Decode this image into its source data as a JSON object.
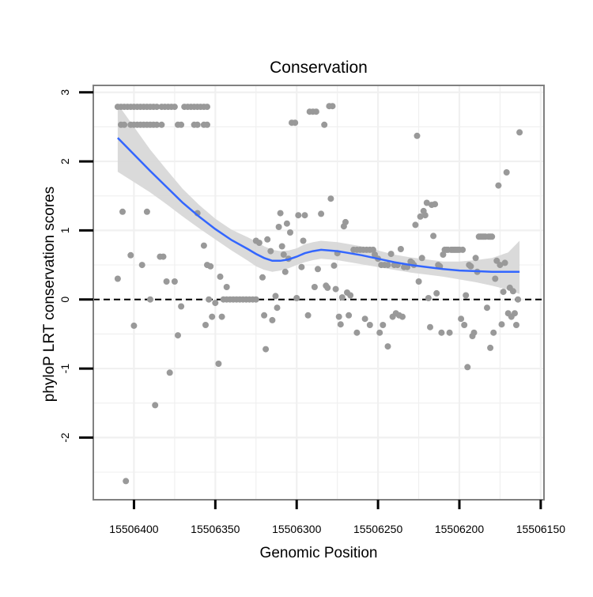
{
  "chart_data": {
    "type": "scatter",
    "title": "Conservation",
    "xlabel": "Genomic Position",
    "ylabel": "phyloP LRT conservation scores",
    "x_reversed": true,
    "xlim": [
      15506425,
      15506148
    ],
    "ylim": [
      -2.9,
      3.1
    ],
    "x_ticks": [
      15506400,
      15506350,
      15506300,
      15506250,
      15506200,
      15506150
    ],
    "x_tick_labels": [
      "15506400",
      "15506350",
      "15506300",
      "15506250",
      "15506200",
      "15506150"
    ],
    "y_ticks": [
      -2,
      -1,
      0,
      1,
      2,
      3
    ],
    "y_tick_labels": [
      "-2",
      "-1",
      "0",
      "1",
      "2",
      "3"
    ],
    "grid": true,
    "reference_line": {
      "y": 0,
      "style": "dashed",
      "color": "#000000"
    },
    "colors": {
      "points": "#999999",
      "smooth_line": "#3366ff",
      "confidence_band": "#d6d6d6",
      "panel_border": "#808080",
      "grid": "#f0f0f0"
    },
    "points": [
      {
        "x": 15506410,
        "y": 2.79
      },
      {
        "x": 15506408,
        "y": 2.79
      },
      {
        "x": 15506406,
        "y": 2.79
      },
      {
        "x": 15506404,
        "y": 2.79
      },
      {
        "x": 15506402,
        "y": 2.79
      },
      {
        "x": 15506400,
        "y": 2.79
      },
      {
        "x": 15506398,
        "y": 2.79
      },
      {
        "x": 15506396,
        "y": 2.79
      },
      {
        "x": 15506394,
        "y": 2.79
      },
      {
        "x": 15506392,
        "y": 2.79
      },
      {
        "x": 15506390,
        "y": 2.79
      },
      {
        "x": 15506388,
        "y": 2.79
      },
      {
        "x": 15506386,
        "y": 2.79
      },
      {
        "x": 15506383,
        "y": 2.79
      },
      {
        "x": 15506381,
        "y": 2.79
      },
      {
        "x": 15506379,
        "y": 2.79
      },
      {
        "x": 15506377,
        "y": 2.79
      },
      {
        "x": 15506375,
        "y": 2.79
      },
      {
        "x": 15506369,
        "y": 2.79
      },
      {
        "x": 15506367,
        "y": 2.79
      },
      {
        "x": 15506365,
        "y": 2.79
      },
      {
        "x": 15506363,
        "y": 2.79
      },
      {
        "x": 15506361,
        "y": 2.79
      },
      {
        "x": 15506359,
        "y": 2.79
      },
      {
        "x": 15506357,
        "y": 2.79
      },
      {
        "x": 15506355,
        "y": 2.79
      },
      {
        "x": 15506408,
        "y": 2.53
      },
      {
        "x": 15506406,
        "y": 2.53
      },
      {
        "x": 15506402,
        "y": 2.53
      },
      {
        "x": 15506400,
        "y": 2.53
      },
      {
        "x": 15506398,
        "y": 2.53
      },
      {
        "x": 15506396,
        "y": 2.53
      },
      {
        "x": 15506394,
        "y": 2.53
      },
      {
        "x": 15506392,
        "y": 2.53
      },
      {
        "x": 15506390,
        "y": 2.53
      },
      {
        "x": 15506388,
        "y": 2.53
      },
      {
        "x": 15506386,
        "y": 2.53
      },
      {
        "x": 15506383,
        "y": 2.53
      },
      {
        "x": 15506373,
        "y": 2.53
      },
      {
        "x": 15506371,
        "y": 2.53
      },
      {
        "x": 15506363,
        "y": 2.53
      },
      {
        "x": 15506361,
        "y": 2.53
      },
      {
        "x": 15506357,
        "y": 2.53
      },
      {
        "x": 15506355,
        "y": 2.53
      },
      {
        "x": 15506410,
        "y": 0.3
      },
      {
        "x": 15506407,
        "y": 1.27
      },
      {
        "x": 15506405,
        "y": -2.63
      },
      {
        "x": 15506402,
        "y": 0.64
      },
      {
        "x": 15506400,
        "y": -0.38
      },
      {
        "x": 15506395,
        "y": 0.5
      },
      {
        "x": 15506392,
        "y": 1.27
      },
      {
        "x": 15506390,
        "y": 0.0
      },
      {
        "x": 15506387,
        "y": -1.53
      },
      {
        "x": 15506384,
        "y": 0.62
      },
      {
        "x": 15506382,
        "y": 0.62
      },
      {
        "x": 15506380,
        "y": 0.26
      },
      {
        "x": 15506378,
        "y": -1.06
      },
      {
        "x": 15506375,
        "y": 0.26
      },
      {
        "x": 15506373,
        "y": -0.52
      },
      {
        "x": 15506371,
        "y": -0.1
      },
      {
        "x": 15506361,
        "y": 1.25
      },
      {
        "x": 15506357,
        "y": 0.78
      },
      {
        "x": 15506355,
        "y": 0.5
      },
      {
        "x": 15506353,
        "y": 0.48
      },
      {
        "x": 15506356,
        "y": -0.37
      },
      {
        "x": 15506354,
        "y": 0.0
      },
      {
        "x": 15506352,
        "y": -0.25
      },
      {
        "x": 15506350,
        "y": -0.05
      },
      {
        "x": 15506348,
        "y": -0.93
      },
      {
        "x": 15506347,
        "y": 0.33
      },
      {
        "x": 15506346,
        "y": -0.25
      },
      {
        "x": 15506345,
        "y": 0.0
      },
      {
        "x": 15506343,
        "y": 0.18
      },
      {
        "x": 15506343,
        "y": 0.0
      },
      {
        "x": 15506341,
        "y": 0.0
      },
      {
        "x": 15506339,
        "y": 0.0
      },
      {
        "x": 15506337,
        "y": 0.0
      },
      {
        "x": 15506335,
        "y": 0.0
      },
      {
        "x": 15506333,
        "y": 0.0
      },
      {
        "x": 15506331,
        "y": 0.0
      },
      {
        "x": 15506329,
        "y": 0.0
      },
      {
        "x": 15506327,
        "y": 0.0
      },
      {
        "x": 15506325,
        "y": 0.0
      },
      {
        "x": 15506325,
        "y": 0.85
      },
      {
        "x": 15506323,
        "y": 0.82
      },
      {
        "x": 15506321,
        "y": 0.32
      },
      {
        "x": 15506319,
        "y": -0.72
      },
      {
        "x": 15506320,
        "y": -0.23
      },
      {
        "x": 15506318,
        "y": 0.87
      },
      {
        "x": 15506316,
        "y": 0.7
      },
      {
        "x": 15506315,
        "y": -0.3
      },
      {
        "x": 15506313,
        "y": 0.05
      },
      {
        "x": 15506312,
        "y": -0.12
      },
      {
        "x": 15506311,
        "y": 1.05
      },
      {
        "x": 15506310,
        "y": 1.25
      },
      {
        "x": 15506308,
        "y": 0.65
      },
      {
        "x": 15506306,
        "y": 1.1
      },
      {
        "x": 15506304,
        "y": 0.97
      },
      {
        "x": 15506303,
        "y": 2.56
      },
      {
        "x": 15506301,
        "y": 2.56
      },
      {
        "x": 15506300,
        "y": 0.02
      },
      {
        "x": 15506299,
        "y": 1.22
      },
      {
        "x": 15506297,
        "y": 0.47
      },
      {
        "x": 15506295,
        "y": 1.22
      },
      {
        "x": 15506293,
        "y": -0.23
      },
      {
        "x": 15506292,
        "y": 2.72
      },
      {
        "x": 15506290,
        "y": 2.72
      },
      {
        "x": 15506288,
        "y": 2.72
      },
      {
        "x": 15506287,
        "y": 0.44
      },
      {
        "x": 15506285,
        "y": 1.24
      },
      {
        "x": 15506283,
        "y": 2.53
      },
      {
        "x": 15506282,
        "y": 0.2
      },
      {
        "x": 15506280,
        "y": 2.8
      },
      {
        "x": 15506278,
        "y": 2.8
      },
      {
        "x": 15506279,
        "y": 1.46
      },
      {
        "x": 15506276,
        "y": 0.15
      },
      {
        "x": 15506275,
        "y": 0.67
      },
      {
        "x": 15506309,
        "y": 0.77
      },
      {
        "x": 15506307,
        "y": 0.4
      },
      {
        "x": 15506305,
        "y": 0.59
      },
      {
        "x": 15506296,
        "y": 0.85
      },
      {
        "x": 15506289,
        "y": 0.18
      },
      {
        "x": 15506281,
        "y": 0.17
      },
      {
        "x": 15506277,
        "y": 0.49
      },
      {
        "x": 15506274,
        "y": -0.25
      },
      {
        "x": 15506273,
        "y": -0.36
      },
      {
        "x": 15506272,
        "y": 0.03
      },
      {
        "x": 15506271,
        "y": 1.06
      },
      {
        "x": 15506270,
        "y": 1.12
      },
      {
        "x": 15506269,
        "y": 0.1
      },
      {
        "x": 15506268,
        "y": -0.23
      },
      {
        "x": 15506267,
        "y": 0.06
      },
      {
        "x": 15506265,
        "y": 0.72
      },
      {
        "x": 15506263,
        "y": 0.72
      },
      {
        "x": 15506261,
        "y": 0.72
      },
      {
        "x": 15506263,
        "y": -0.48
      },
      {
        "x": 15506259,
        "y": 0.72
      },
      {
        "x": 15506258,
        "y": -0.28
      },
      {
        "x": 15506257,
        "y": 0.72
      },
      {
        "x": 15506255,
        "y": 0.72
      },
      {
        "x": 15506253,
        "y": 0.72
      },
      {
        "x": 15506255,
        "y": -0.37
      },
      {
        "x": 15506252,
        "y": 0.65
      },
      {
        "x": 15506250,
        "y": 0.59
      },
      {
        "x": 15506249,
        "y": -0.48
      },
      {
        "x": 15506248,
        "y": 0.5
      },
      {
        "x": 15506247,
        "y": -0.37
      },
      {
        "x": 15506246,
        "y": 0.5
      },
      {
        "x": 15506244,
        "y": 0.5
      },
      {
        "x": 15506244,
        "y": -0.68
      },
      {
        "x": 15506242,
        "y": 0.66
      },
      {
        "x": 15506241,
        "y": -0.25
      },
      {
        "x": 15506240,
        "y": 0.5
      },
      {
        "x": 15506239,
        "y": -0.2
      },
      {
        "x": 15506238,
        "y": 0.5
      },
      {
        "x": 15506237,
        "y": -0.23
      },
      {
        "x": 15506236,
        "y": 0.73
      },
      {
        "x": 15506235,
        "y": -0.25
      },
      {
        "x": 15506234,
        "y": 0.47
      },
      {
        "x": 15506232,
        "y": 0.47
      },
      {
        "x": 15506230,
        "y": 0.55
      },
      {
        "x": 15506229,
        "y": 0.53
      },
      {
        "x": 15506228,
        "y": 0.5
      },
      {
        "x": 15506227,
        "y": 1.08
      },
      {
        "x": 15506226,
        "y": 2.37
      },
      {
        "x": 15506225,
        "y": 0.26
      },
      {
        "x": 15506224,
        "y": 1.2
      },
      {
        "x": 15506223,
        "y": 0.6
      },
      {
        "x": 15506222,
        "y": 1.28
      },
      {
        "x": 15506221,
        "y": 1.22
      },
      {
        "x": 15506220,
        "y": 1.4
      },
      {
        "x": 15506219,
        "y": 0.02
      },
      {
        "x": 15506218,
        "y": -0.4
      },
      {
        "x": 15506217,
        "y": 1.37
      },
      {
        "x": 15506216,
        "y": 0.92
      },
      {
        "x": 15506215,
        "y": 1.38
      },
      {
        "x": 15506214,
        "y": 0.09
      },
      {
        "x": 15506213,
        "y": 0.5
      },
      {
        "x": 15506212,
        "y": 0.48
      },
      {
        "x": 15506211,
        "y": -0.48
      },
      {
        "x": 15506210,
        "y": 0.65
      },
      {
        "x": 15506209,
        "y": 0.72
      },
      {
        "x": 15506208,
        "y": 0.72
      },
      {
        "x": 15506207,
        "y": 0.72
      },
      {
        "x": 15506206,
        "y": -0.48
      },
      {
        "x": 15506205,
        "y": 0.72
      },
      {
        "x": 15506204,
        "y": 0.72
      },
      {
        "x": 15506203,
        "y": 0.72
      },
      {
        "x": 15506202,
        "y": 0.72
      },
      {
        "x": 15506201,
        "y": 0.72
      },
      {
        "x": 15506200,
        "y": 0.72
      },
      {
        "x": 15506199,
        "y": -0.28
      },
      {
        "x": 15506198,
        "y": 0.72
      },
      {
        "x": 15506197,
        "y": -0.37
      },
      {
        "x": 15506196,
        "y": 0.06
      },
      {
        "x": 15506195,
        "y": -0.98
      },
      {
        "x": 15506194,
        "y": 0.5
      },
      {
        "x": 15506193,
        "y": 0.48
      },
      {
        "x": 15506192,
        "y": -0.53
      },
      {
        "x": 15506191,
        "y": -0.48
      },
      {
        "x": 15506190,
        "y": 0.6
      },
      {
        "x": 15506189,
        "y": 0.4
      },
      {
        "x": 15506188,
        "y": 0.91
      },
      {
        "x": 15506187,
        "y": 0.91
      },
      {
        "x": 15506186,
        "y": 0.91
      },
      {
        "x": 15506185,
        "y": 0.91
      },
      {
        "x": 15506184,
        "y": 0.91
      },
      {
        "x": 15506183,
        "y": -0.12
      },
      {
        "x": 15506182,
        "y": 0.91
      },
      {
        "x": 15506181,
        "y": 0.91
      },
      {
        "x": 15506181,
        "y": -0.7
      },
      {
        "x": 15506180,
        "y": 0.91
      },
      {
        "x": 15506179,
        "y": -0.48
      },
      {
        "x": 15506178,
        "y": 0.3
      },
      {
        "x": 15506177,
        "y": 0.56
      },
      {
        "x": 15506176,
        "y": 1.65
      },
      {
        "x": 15506175,
        "y": 0.5
      },
      {
        "x": 15506174,
        "y": -0.36
      },
      {
        "x": 15506173,
        "y": 0.11
      },
      {
        "x": 15506172,
        "y": 0.53
      },
      {
        "x": 15506171,
        "y": 1.84
      },
      {
        "x": 15506170,
        "y": -0.2
      },
      {
        "x": 15506169,
        "y": 0.17
      },
      {
        "x": 15506168,
        "y": -0.25
      },
      {
        "x": 15506167,
        "y": 0.12
      },
      {
        "x": 15506166,
        "y": -0.2
      },
      {
        "x": 15506165,
        "y": -0.37
      },
      {
        "x": 15506164,
        "y": 0.0
      },
      {
        "x": 15506163,
        "y": 2.42
      }
    ],
    "smooth": {
      "x": [
        15506410,
        15506400,
        15506390,
        15506380,
        15506370,
        15506360,
        15506350,
        15506340,
        15506330,
        15506325,
        15506320,
        15506315,
        15506310,
        15506305,
        15506300,
        15506295,
        15506290,
        15506285,
        15506280,
        15506275,
        15506270,
        15506260,
        15506250,
        15506240,
        15506230,
        15506220,
        15506210,
        15506200,
        15506190,
        15506180,
        15506170,
        15506163
      ],
      "y": [
        2.34,
        2.1,
        1.86,
        1.63,
        1.4,
        1.2,
        1.02,
        0.86,
        0.73,
        0.66,
        0.6,
        0.56,
        0.56,
        0.58,
        0.62,
        0.67,
        0.7,
        0.72,
        0.71,
        0.7,
        0.68,
        0.64,
        0.59,
        0.54,
        0.5,
        0.47,
        0.44,
        0.42,
        0.41,
        0.4,
        0.4,
        0.4
      ],
      "lower": [
        1.85,
        1.7,
        1.55,
        1.38,
        1.2,
        1.03,
        0.87,
        0.71,
        0.56,
        0.48,
        0.43,
        0.4,
        0.42,
        0.45,
        0.5,
        0.54,
        0.57,
        0.59,
        0.58,
        0.57,
        0.55,
        0.51,
        0.47,
        0.43,
        0.39,
        0.36,
        0.33,
        0.29,
        0.25,
        0.2,
        0.14,
        0.08
      ],
      "upper": [
        2.83,
        2.5,
        2.17,
        1.88,
        1.6,
        1.37,
        1.17,
        1.01,
        0.9,
        0.84,
        0.77,
        0.72,
        0.7,
        0.71,
        0.74,
        0.8,
        0.83,
        0.85,
        0.84,
        0.83,
        0.81,
        0.77,
        0.71,
        0.65,
        0.61,
        0.58,
        0.55,
        0.55,
        0.57,
        0.6,
        0.68,
        0.85
      ]
    }
  }
}
